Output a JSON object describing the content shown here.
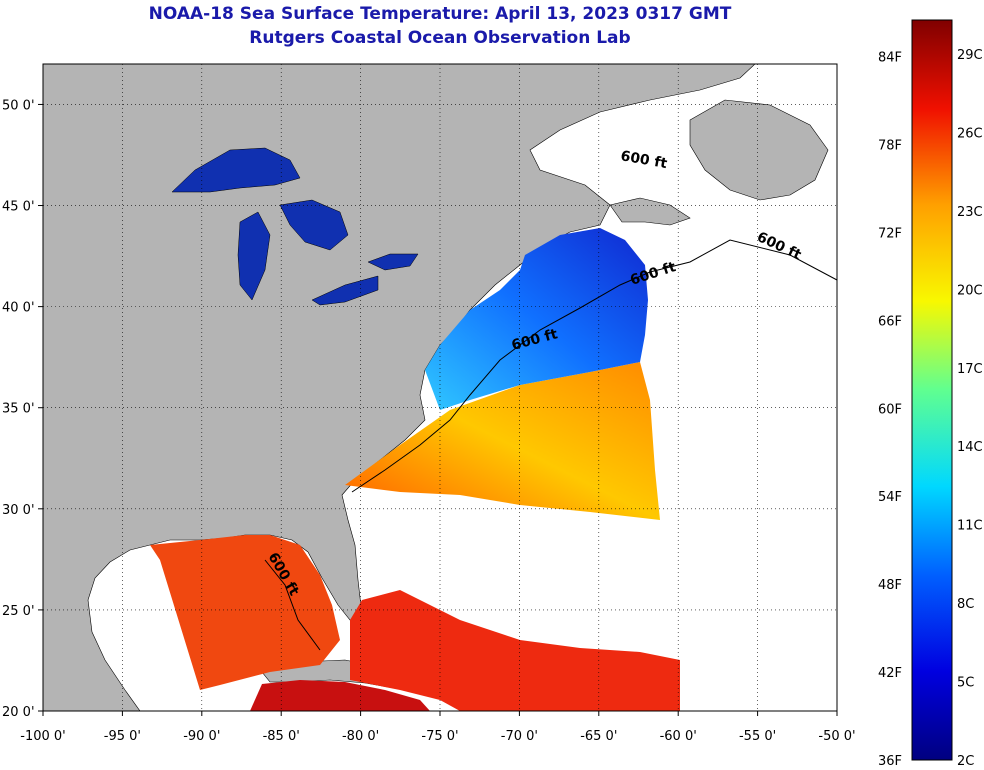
{
  "header": {
    "title": "NOAA-18 Sea Surface Temperature:  April 13, 2023 0317 GMT",
    "subtitle": "Rutgers Coastal Ocean Observation Lab"
  },
  "map": {
    "lon_ticks": [
      "-100 0'",
      "-95 0'",
      "-90 0'",
      "-85 0'",
      "-80 0'",
      "-75 0'",
      "-70 0'",
      "-65 0'",
      "-60 0'",
      "-55 0'",
      "-50 0'"
    ],
    "lat_ticks": [
      "50 0'",
      "45 0'",
      "40 0'",
      "35 0'",
      "30 0'",
      "25 0'",
      "20 0'"
    ],
    "lon_range": [
      -100,
      -50
    ],
    "lat_range": [
      20,
      52
    ],
    "contour_label": "600 ft",
    "colors": {
      "land": "#b4b4b4",
      "cloud": "#ffffff",
      "lakes": "#1030b0"
    }
  },
  "colorbar": {
    "f_labels": [
      "84F",
      "78F",
      "72F",
      "66F",
      "60F",
      "54F",
      "48F",
      "42F",
      "36F"
    ],
    "c_labels": [
      "29C",
      "26C",
      "23C",
      "20C",
      "17C",
      "14C",
      "11C",
      "8C",
      "5C",
      "2C"
    ]
  }
}
